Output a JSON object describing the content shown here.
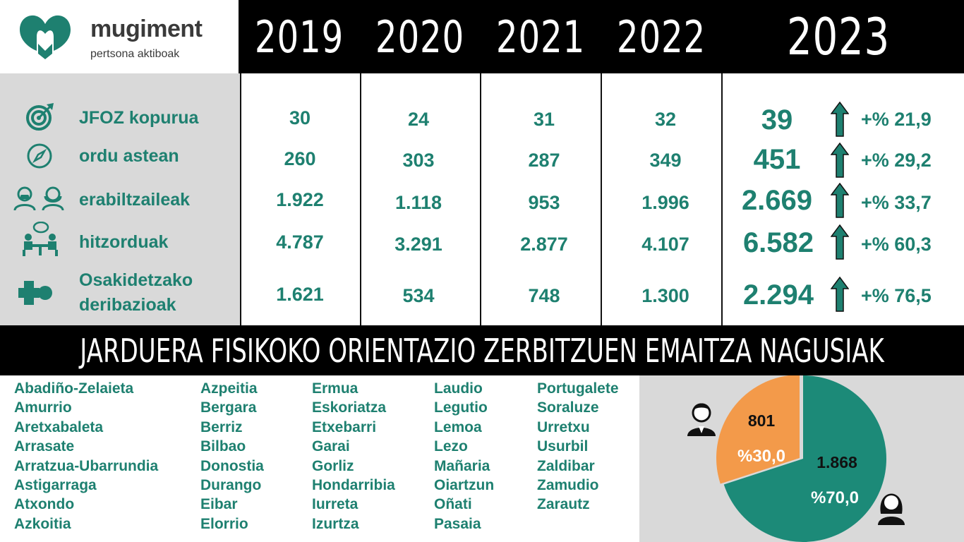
{
  "logo": {
    "name": "mugiment",
    "tagline": "pertsona aktiboak"
  },
  "years": [
    "2019",
    "2020",
    "2021",
    "2022",
    "2023"
  ],
  "rows": [
    {
      "icon": "target-icon",
      "label": "JFOZ kopurua",
      "values": [
        "30",
        "24",
        "31",
        "32"
      ],
      "value_2023": "39",
      "trend": "arrow-up-icon",
      "change": "+% 21,9"
    },
    {
      "icon": "compass-icon",
      "label": "ordu astean",
      "values": [
        "260",
        "303",
        "287",
        "349"
      ],
      "value_2023": "451",
      "trend": "arrow-up-icon",
      "change": "+% 29,2"
    },
    {
      "icon": "users-icon",
      "label": "erabiltzaileak",
      "values": [
        "1.922",
        "1.118",
        "953",
        "1.996"
      ],
      "value_2023": "2.669",
      "trend": "arrow-up-icon",
      "change": "+% 33,7"
    },
    {
      "icon": "meeting-icon",
      "label": "hitzorduak",
      "values": [
        "4.787",
        "3.291",
        "2.877",
        "4.107"
      ],
      "value_2023": "6.582",
      "trend": "arrow-up-icon",
      "change": "+% 60,3"
    },
    {
      "icon": "osakidetza-icon",
      "label_line1": "Osakidetzako",
      "label_line2": "deribazioak",
      "values": [
        "1.621",
        "534",
        "748",
        "1.300"
      ],
      "value_2023": "2.294",
      "trend": "arrow-up-icon",
      "change": "+% 76,5"
    }
  ],
  "banner": "JARDUERA FISIKOKO ORIENTAZIO ZERBITZUEN EMAITZA NAGUSIAK",
  "towns": [
    [
      "Abadiño-Zelaieta",
      "Amurrio",
      "Aretxabaleta",
      "Arrasate",
      "Arratzua-Ubarrundia",
      "Astigarraga",
      "Atxondo",
      "Azkoitia"
    ],
    [
      "Azpeitia",
      "Bergara",
      "Berriz",
      "Bilbao",
      "Donostia",
      "Durango",
      "Eibar",
      "Elorrio"
    ],
    [
      "Ermua",
      "Eskoriatza",
      "Etxebarri",
      "Garai",
      "Gorliz",
      "Hondarribia",
      "Iurreta",
      "Izurtza"
    ],
    [
      "Laudio",
      "Legutio",
      "Lemoa",
      "Lezo",
      "Mañaria",
      "Oiartzun",
      "Oñati",
      "Pasaia"
    ],
    [
      "Portugalete",
      "Soraluze",
      "Urretxu",
      "Usurbil",
      "Zaldibar",
      "Zamudio",
      "Zarautz"
    ]
  ],
  "chart_data": {
    "type": "pie",
    "slices": [
      {
        "group": "male-icon",
        "count": "801",
        "percent_label": "%30,0",
        "value": 30.0,
        "color": "#f39a4a"
      },
      {
        "group": "female-icon",
        "count": "1.868",
        "percent_label": "%70,0",
        "value": 70.0,
        "color": "#1c8a78"
      }
    ]
  },
  "colors": {
    "teal": "#1e8070",
    "label_bg": "#d9d9d9",
    "orange": "#f39a4a",
    "pie_teal": "#1c8a78"
  }
}
